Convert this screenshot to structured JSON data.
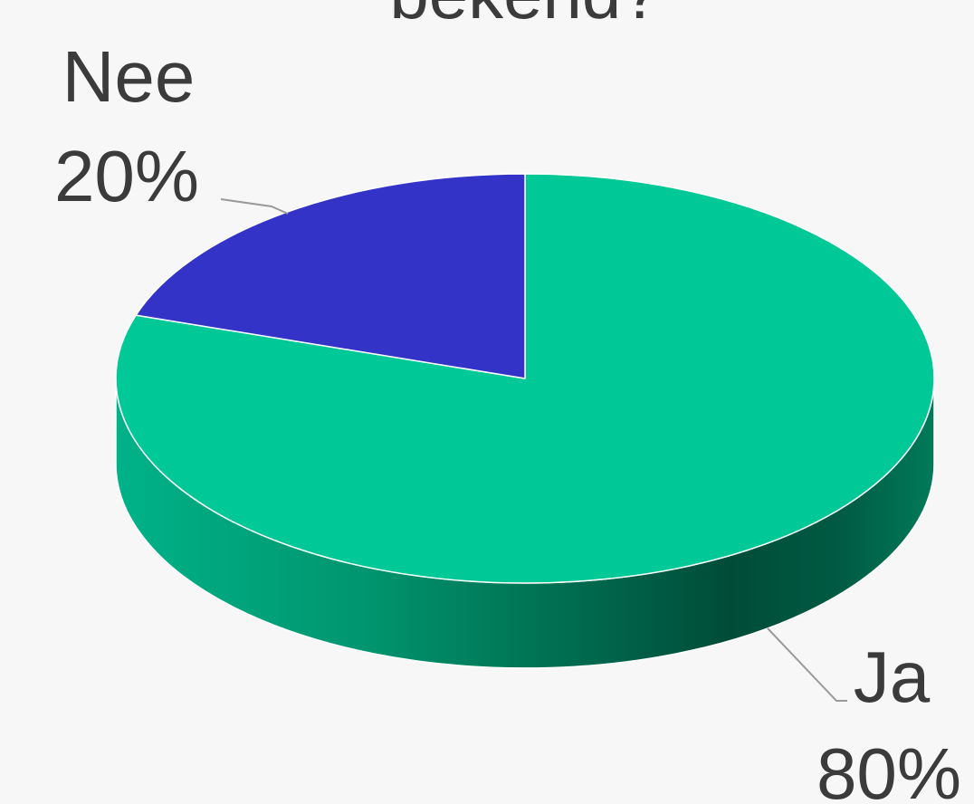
{
  "chart_data": {
    "type": "pie",
    "title": "bekend?",
    "categories": [
      "Nee",
      "Ja"
    ],
    "values": [
      20,
      80
    ],
    "slices": [
      {
        "label": "Nee",
        "value_label": "20%",
        "value": 20,
        "color": "#3333c8"
      },
      {
        "label": "Ja",
        "value_label": "80%",
        "value": 80,
        "color": "#00c896"
      }
    ],
    "three_d": true,
    "legend": "none"
  }
}
